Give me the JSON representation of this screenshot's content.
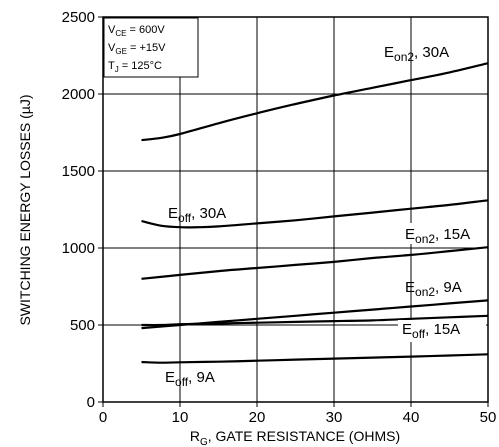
{
  "chart_data": {
    "type": "line",
    "xlabel": {
      "main": "R",
      "sub": "G",
      "rest": ", GATE RESISTANCE (OHMS)"
    },
    "ylabel": "SWITCHING ENERGY LOSSES (µJ)",
    "xlim": [
      0,
      50
    ],
    "ylim": [
      0,
      2500
    ],
    "x_ticks": [
      0,
      10,
      20,
      30,
      40,
      50
    ],
    "y_ticks": [
      0,
      500,
      1000,
      1500,
      2000,
      2500
    ],
    "grid": true,
    "conditions": [
      {
        "main": "V",
        "sub": "CE",
        "rest": " =  600V"
      },
      {
        "main": "V",
        "sub": "GE",
        "rest": " =  +15V"
      },
      {
        "main": "T",
        "sub": "J",
        "rest": " = 125°C"
      }
    ],
    "series": [
      {
        "main": "E",
        "sub": "on2",
        "rest": ", 30A",
        "x": [
          5,
          7.5,
          10,
          15,
          20,
          25,
          30,
          35,
          40,
          45,
          50
        ],
        "y": [
          1700,
          1715,
          1740,
          1810,
          1875,
          1935,
          1990,
          2040,
          2090,
          2140,
          2200
        ]
      },
      {
        "main": "E",
        "sub": "off",
        "rest": ", 30A",
        "x": [
          5,
          7.5,
          10,
          12.5,
          15,
          20,
          25,
          30,
          35,
          40,
          45,
          50
        ],
        "y": [
          1175,
          1145,
          1135,
          1135,
          1140,
          1160,
          1180,
          1205,
          1230,
          1255,
          1280,
          1310
        ]
      },
      {
        "main": "E",
        "sub": "on2",
        "rest": ", 15A",
        "x": [
          5,
          10,
          15,
          20,
          25,
          30,
          35,
          40,
          45,
          50
        ],
        "y": [
          800,
          825,
          850,
          870,
          890,
          910,
          935,
          955,
          980,
          1005
        ]
      },
      {
        "main": "E",
        "sub": "on2",
        "rest": ", 9A",
        "x": [
          5,
          10,
          15,
          20,
          25,
          30,
          35,
          40,
          45,
          50
        ],
        "y": [
          480,
          500,
          520,
          540,
          560,
          580,
          600,
          620,
          640,
          660
        ]
      },
      {
        "main": "E",
        "sub": "off",
        "rest": ", 15A",
        "x": [
          5,
          7.5,
          10,
          15,
          20,
          25,
          30,
          35,
          40,
          45,
          50
        ],
        "y": [
          500,
          500,
          505,
          510,
          515,
          520,
          525,
          530,
          540,
          550,
          560
        ]
      },
      {
        "main": "E",
        "sub": "off",
        "rest": ", 9A",
        "x": [
          5,
          7.5,
          10,
          15,
          20,
          25,
          30,
          35,
          40,
          45,
          50
        ],
        "y": [
          260,
          255,
          258,
          262,
          268,
          275,
          282,
          288,
          295,
          302,
          310
        ]
      }
    ]
  }
}
